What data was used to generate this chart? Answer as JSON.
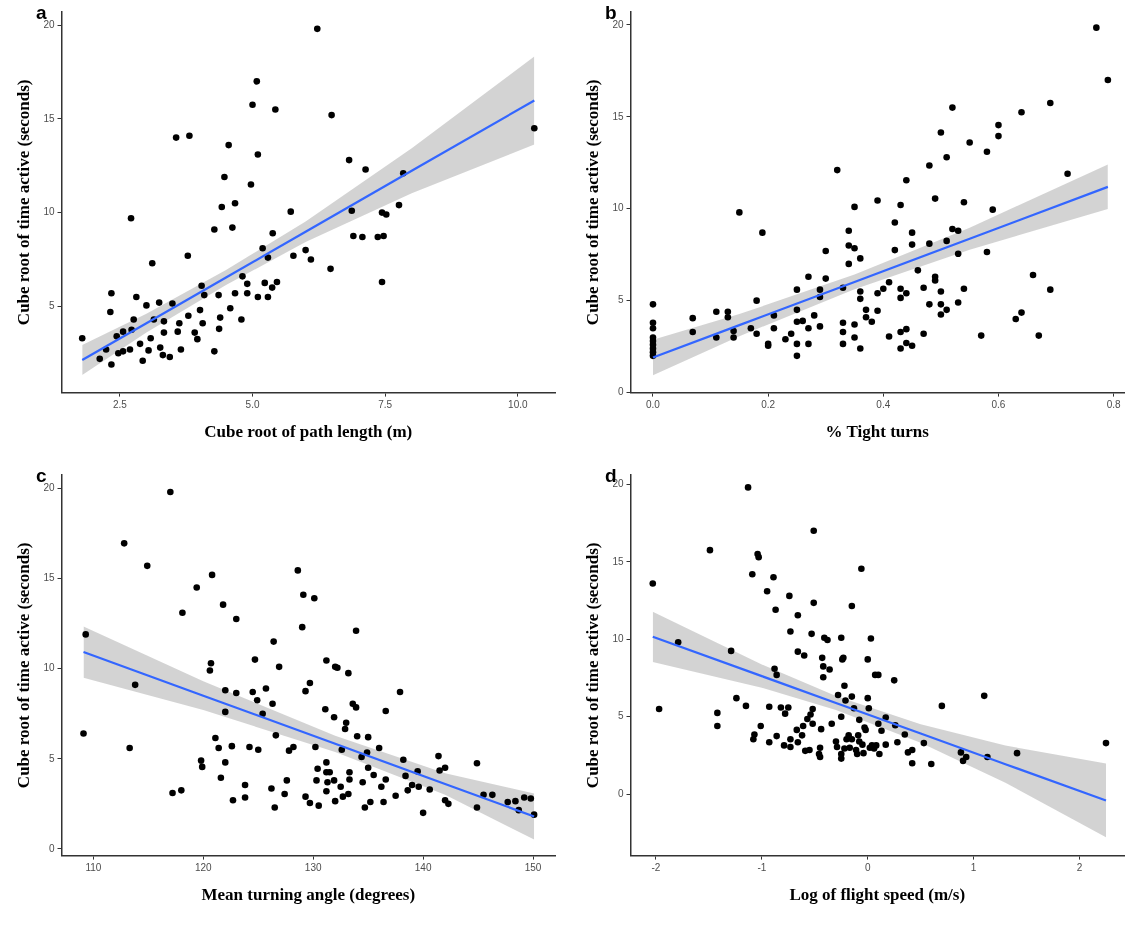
{
  "chart_data": [
    {
      "type": "scatter",
      "title": "a",
      "xlabel": "Cube root of path length (m)",
      "ylabel": "Cube root of time active (seconds)",
      "xlim": [
        1.4,
        10.7
      ],
      "ylim": [
        0.4,
        20.7
      ],
      "xticks": [
        2.5,
        {
          "value": 5,
          "label": "5.0"
        },
        7.5,
        {
          "value": 10,
          "label": "10.0"
        }
      ],
      "yticks": [
        5,
        10,
        15,
        20
      ],
      "series": [
        {
          "marker": "circle",
          "color": "#000000",
          "x": [
            1.79,
            2.34,
            2.34,
            2.32,
            2.71,
            3.11,
            3.56,
            3.81,
            3.78,
            4.04,
            4.28,
            4.28,
            4.42,
            4.47,
            4.55,
            4.67,
            4.62,
            4.97,
            5.0,
            5.08,
            5.1,
            5.43,
            6.22,
            6.49,
            5.72,
            5.38,
            5.19,
            5.29,
            5.77,
            6.0,
            6.1,
            6.47,
            6.82,
            7.13,
            7.84,
            6.87,
            6.9,
            7.07,
            7.36,
            7.47,
            7.44,
            7.52,
            7.76,
            7.44,
            10.31,
            4.81,
            4.9,
            4.9,
            5.1,
            5.29,
            5.46,
            5.37,
            5.23,
            4.67,
            4.36,
            4.58,
            4.79,
            4.37,
            4.39,
            4.09,
            4.01,
            4.06,
            3.96,
            3.79,
            3.49,
            3.24,
            3.0,
            2.81,
            2.76,
            3.65,
            3.44,
            3.31,
            2.93,
            3.04,
            3.26,
            3.59,
            3.33,
            3.08,
            2.88,
            2.69,
            2.56,
            2.47,
            2.12,
            2.24,
            2.44,
            2.56,
            2.72,
            3.14,
            3.33,
            3.62,
            3.91
          ],
          "values": [
            3.3,
            1.9,
            5.7,
            4.7,
            9.7,
            7.3,
            14.0,
            14.1,
            7.7,
            6.1,
            2.6,
            9.1,
            10.3,
            11.9,
            13.6,
            10.5,
            9.2,
            11.5,
            15.75,
            17.0,
            13.1,
            15.5,
            19.8,
            15.2,
            10.05,
            8.9,
            8.1,
            7.6,
            7.7,
            8.0,
            7.5,
            7.0,
            12.8,
            12.3,
            12.1,
            10.1,
            8.75,
            8.7,
            8.7,
            8.75,
            10.0,
            9.9,
            10.4,
            6.3,
            14.5,
            6.6,
            6.2,
            5.7,
            5.5,
            5.5,
            6.3,
            6.0,
            6.25,
            5.7,
            5.6,
            4.9,
            4.3,
            3.8,
            4.4,
            5.6,
            4.8,
            4.1,
            3.25,
            4.5,
            5.15,
            5.2,
            5.05,
            5.5,
            4.3,
            2.7,
            2.3,
            2.4,
            2.1,
            2.65,
            2.8,
            3.65,
            3.6,
            3.3,
            3.0,
            2.7,
            2.6,
            2.5,
            2.2,
            2.7,
            3.4,
            3.65,
            3.75,
            4.3,
            4.2,
            4.1,
            3.6
          ]
        },
        {
          "type": "line",
          "color": "#3366ff",
          "x": [
            1.79,
            3,
            4.5,
            6,
            8,
            10.31
          ],
          "values": [
            2.14,
            4.1,
            6.54,
            8.98,
            12.23,
            15.98
          ],
          "lower": [
            1.34,
            3.6,
            6.14,
            8.43,
            11.03,
            13.63
          ],
          "upper": [
            2.94,
            4.6,
            6.94,
            9.53,
            13.43,
            18.33
          ]
        }
      ]
    },
    {
      "type": "scatter",
      "title": "b",
      "xlabel": "% Tight turns",
      "ylabel": "Cube root of time active (seconds)",
      "xlim": [
        -0.039,
        0.818
      ],
      "ylim": [
        0,
        20.7
      ],
      "xticks": [
        {
          "value": 0,
          "label": "0.0"
        },
        0.2,
        0.4,
        0.6,
        0.8
      ],
      "yticks": [
        0,
        5,
        10,
        15,
        20
      ],
      "series": [
        {
          "marker": "circle",
          "color": "#000000",
          "x": [
            0,
            0,
            0,
            0,
            0,
            0,
            0,
            0,
            0,
            0.069,
            0.069,
            0.11,
            0.11,
            0.13,
            0.13,
            0.14,
            0.14,
            0.15,
            0.17,
            0.18,
            0.18,
            0.19,
            0.2,
            0.2,
            0.21,
            0.21,
            0.23,
            0.24,
            0.25,
            0.25,
            0.25,
            0.25,
            0.25,
            0.26,
            0.27,
            0.27,
            0.27,
            0.28,
            0.29,
            0.29,
            0.29,
            0.3,
            0.3,
            0.32,
            0.33,
            0.33,
            0.33,
            0.33,
            0.34,
            0.34,
            0.34,
            0.35,
            0.35,
            0.35,
            0.35,
            0.36,
            0.36,
            0.36,
            0.36,
            0.37,
            0.37,
            0.38,
            0.39,
            0.39,
            0.39,
            0.4,
            0.41,
            0.41,
            0.42,
            0.42,
            0.43,
            0.43,
            0.43,
            0.43,
            0.43,
            0.44,
            0.44,
            0.44,
            0.44,
            0.45,
            0.45,
            0.45,
            0.46,
            0.47,
            0.47,
            0.48,
            0.48,
            0.48,
            0.49,
            0.49,
            0.49,
            0.5,
            0.5,
            0.5,
            0.5,
            0.51,
            0.51,
            0.51,
            0.52,
            0.52,
            0.53,
            0.53,
            0.53,
            0.54,
            0.54,
            0.55,
            0.57,
            0.58,
            0.58,
            0.59,
            0.6,
            0.6,
            0.63,
            0.64,
            0.64,
            0.66,
            0.67,
            0.69,
            0.69,
            0.72,
            0.77,
            0.79
          ],
          "values": [
            4.8,
            3.8,
            3.5,
            3.0,
            2.8,
            2.6,
            2.4,
            2.2,
            2.0,
            4.05,
            3.3,
            4.4,
            3.0,
            4.4,
            4.1,
            3.35,
            3.0,
            9.8,
            3.5,
            5.0,
            3.2,
            8.7,
            2.65,
            2.55,
            4.2,
            3.5,
            2.9,
            3.2,
            5.6,
            4.5,
            3.85,
            2.65,
            2.0,
            3.9,
            6.3,
            3.5,
            2.65,
            4.2,
            5.6,
            5.2,
            3.6,
            7.7,
            6.2,
            12.1,
            5.7,
            3.8,
            2.65,
            3.3,
            8.8,
            8.0,
            7.0,
            10.1,
            7.85,
            3.7,
            3.0,
            7.3,
            5.5,
            5.1,
            2.4,
            4.5,
            4.1,
            3.85,
            10.45,
            5.4,
            4.45,
            5.65,
            6.0,
            3.05,
            9.25,
            7.75,
            10.2,
            5.65,
            5.15,
            3.3,
            2.4,
            11.55,
            5.4,
            3.45,
            2.7,
            8.7,
            8.05,
            2.55,
            6.65,
            5.7,
            3.2,
            12.35,
            8.1,
            4.8,
            10.55,
            6.3,
            6.1,
            14.15,
            5.5,
            4.8,
            4.25,
            12.8,
            8.25,
            4.5,
            15.5,
            8.9,
            8.8,
            7.55,
            4.9,
            10.35,
            5.65,
            13.6,
            3.1,
            13.1,
            7.65,
            9.95,
            14.55,
            13.95,
            4.0,
            15.25,
            4.35,
            6.4,
            3.1,
            15.75,
            5.6,
            11.9,
            19.85,
            17.0
          ]
        },
        {
          "type": "line",
          "color": "#3366ff",
          "x": [
            0,
            0.15,
            0.35,
            0.55,
            0.79
          ],
          "values": [
            1.91,
            3.67,
            6.02,
            8.37,
            11.19
          ],
          "lower": [
            0.94,
            3.07,
            5.62,
            7.77,
            9.98
          ],
          "upper": [
            2.88,
            4.27,
            6.42,
            8.97,
            12.4
          ]
        }
      ]
    },
    {
      "type": "scatter",
      "title": "c",
      "xlabel": "Mean turning angle (degrees)",
      "ylabel": "Cube root of time active (seconds)",
      "xlim": [
        107.1,
        152
      ],
      "ylim": [
        -0.37,
        20.74
      ],
      "xticks": [
        110,
        120,
        130,
        140,
        150
      ],
      "yticks": [
        0,
        5,
        10,
        15,
        20
      ],
      "series": [
        {
          "marker": "circle",
          "color": "#000000",
          "x": [
            109.1,
            109.3,
            112.8,
            113.3,
            113.8,
            114.9,
            117.0,
            117.2,
            118.0,
            118.1,
            119.4,
            119.8,
            119.9,
            120.6,
            120.7,
            120.8,
            121.1,
            121.4,
            121.6,
            121.8,
            122.0,
            122.0,
            122.0,
            122.6,
            122.7,
            123.0,
            123.0,
            123.8,
            123.8,
            124.2,
            124.5,
            124.7,
            124.9,
            125.0,
            125.4,
            125.7,
            126.2,
            126.3,
            126.4,
            126.5,
            126.6,
            126.9,
            127.4,
            127.6,
            127.8,
            128.2,
            128.6,
            129.0,
            129.1,
            129.3,
            129.3,
            129.7,
            129.7,
            130.1,
            130.2,
            130.3,
            130.4,
            130.5,
            131.1,
            131.2,
            131.2,
            131.2,
            131.2,
            131.3,
            131.5,
            131.9,
            131.9,
            132.0,
            132.2,
            132.0,
            132.5,
            132.6,
            132.7,
            132.9,
            133.0,
            133.2,
            133.2,
            133.3,
            133.3,
            133.6,
            133.9,
            133.9,
            134.0,
            134.4,
            134.5,
            134.7,
            134.9,
            135.0,
            135.0,
            135.2,
            135.5,
            136.0,
            136.2,
            136.4,
            136.6,
            136.6,
            137.5,
            137.9,
            138.2,
            138.4,
            138.6,
            139.0,
            139.5,
            139.6,
            140.0,
            140.6,
            141.4,
            141.5,
            142.0,
            142.0,
            142.3,
            144.9,
            144.9,
            145.5,
            146.3,
            147.7,
            148.4,
            148.7,
            149.2,
            149.8,
            150.1
          ],
          "values": [
            6.4,
            11.9,
            16.95,
            5.6,
            9.1,
            15.7,
            19.8,
            3.1,
            3.25,
            13.1,
            14.5,
            4.9,
            4.55,
            9.9,
            10.3,
            15.2,
            6.15,
            5.6,
            3.95,
            13.55,
            8.8,
            7.6,
            4.8,
            5.7,
            2.7,
            12.75,
            8.65,
            3.55,
            2.85,
            5.65,
            8.7,
            10.5,
            8.25,
            5.5,
            7.5,
            8.9,
            3.35,
            8.05,
            11.5,
            2.3,
            6.3,
            10.1,
            3.05,
            3.8,
            5.45,
            5.65,
            15.45,
            12.3,
            14.1,
            2.9,
            8.75,
            9.2,
            2.55,
            13.9,
            5.65,
            3.8,
            4.45,
            2.4,
            7.75,
            10.45,
            4.8,
            4.25,
            3.2,
            3.7,
            4.25,
            3.8,
            7.3,
            10.1,
            10.05,
            2.65,
            3.45,
            5.5,
            2.9,
            6.65,
            7.0,
            9.75,
            3.05,
            4.25,
            3.85,
            8.05,
            12.1,
            7.85,
            6.25,
            5.1,
            3.7,
            2.3,
            5.35,
            4.5,
            6.2,
            2.6,
            4.1,
            5.6,
            3.45,
            2.6,
            7.65,
            3.85,
            2.95,
            8.7,
            4.95,
            4.05,
            3.25,
            3.55,
            4.3,
            3.45,
            2.0,
            3.3,
            5.15,
            4.35,
            4.5,
            2.7,
            2.5,
            4.75,
            2.3,
            3.0,
            3.0,
            2.6,
            2.65,
            2.15,
            2.85,
            2.8,
            1.9
          ]
        },
        {
          "type": "line",
          "color": "#3366ff",
          "x": [
            109.1,
            120,
            132,
            142,
            150.1
          ],
          "values": [
            10.92,
            8.5,
            5.83,
            3.6,
            1.8
          ],
          "lower": [
            9.5,
            7.7,
            5.38,
            3.0,
            0.52
          ],
          "upper": [
            12.34,
            9.3,
            6.28,
            4.2,
            3.08
          ]
        }
      ]
    },
    {
      "type": "scatter",
      "title": "d",
      "xlabel": "Log of flight speed (m/s)",
      "ylabel": "Cube root of time active (seconds)",
      "xlim": [
        -2.24,
        2.42
      ],
      "ylim": [
        -3.96,
        20.6
      ],
      "xticks": [
        -2,
        -1,
        0,
        1,
        2
      ],
      "yticks": [
        0,
        5,
        10,
        15,
        20
      ],
      "series": [
        {
          "marker": "circle",
          "color": "#000000",
          "x": [
            -2.03,
            -1.97,
            -1.79,
            -1.49,
            -1.42,
            -1.42,
            -1.29,
            -1.24,
            -1.15,
            -1.13,
            -1.09,
            -1.08,
            -1.07,
            -1.04,
            -1.03,
            -1.01,
            -0.95,
            -0.93,
            -0.93,
            -0.89,
            -0.88,
            -0.87,
            -0.86,
            -0.86,
            -0.82,
            -0.79,
            -0.78,
            -0.75,
            -0.74,
            -0.73,
            -0.73,
            -0.73,
            -0.67,
            -0.66,
            -0.66,
            -0.66,
            -0.62,
            -0.61,
            -0.6,
            -0.59,
            -0.57,
            -0.55,
            -0.54,
            -0.53,
            -0.52,
            -0.51,
            -0.51,
            -0.52,
            -0.46,
            -0.45,
            -0.45,
            -0.44,
            -0.43,
            -0.42,
            -0.42,
            -0.41,
            -0.38,
            -0.36,
            -0.34,
            -0.3,
            -0.29,
            -0.28,
            -0.25,
            -0.25,
            -0.24,
            -0.25,
            -0.25,
            -0.23,
            -0.22,
            -0.22,
            -0.21,
            -0.2,
            -0.18,
            -0.17,
            -0.15,
            -0.15,
            -0.15,
            -0.13,
            -0.11,
            -0.1,
            -0.09,
            -0.08,
            -0.08,
            -0.06,
            -0.05,
            -0.04,
            -0.03,
            -0.02,
            0.0,
            0.0,
            0.01,
            0.02,
            0.03,
            0.04,
            0.06,
            0.07,
            0.08,
            0.1,
            0.1,
            0.11,
            0.13,
            0.17,
            0.17,
            0.25,
            0.26,
            0.28,
            0.35,
            0.38,
            0.42,
            0.42,
            0.53,
            0.6,
            0.7,
            0.88,
            0.9,
            0.93,
            1.1,
            1.13,
            1.41,
            2.25
          ],
          "values": [
            13.6,
            5.5,
            9.8,
            15.75,
            4.4,
            5.25,
            9.25,
            6.2,
            5.7,
            19.8,
            14.2,
            3.55,
            3.85,
            15.5,
            15.3,
            4.4,
            13.1,
            3.35,
            5.65,
            14.0,
            8.1,
            11.9,
            7.7,
            3.75,
            5.6,
            3.15,
            5.2,
            5.6,
            12.8,
            10.5,
            3.05,
            3.55,
            4.15,
            11.55,
            9.2,
            3.35,
            3.8,
            4.4,
            8.95,
            2.8,
            4.85,
            2.85,
            5.15,
            10.35,
            5.5,
            17.0,
            12.35,
            4.55,
            2.6,
            2.4,
            3.0,
            4.2,
            8.8,
            7.55,
            8.25,
            10.1,
            9.95,
            8.05,
            4.55,
            3.4,
            3.05,
            6.4,
            10.1,
            5.0,
            8.7,
            2.6,
            2.3,
            8.8,
            7.0,
            2.95,
            6.05,
            3.55,
            3.8,
            3.0,
            6.3,
            3.55,
            12.15,
            5.55,
            2.85,
            2.6,
            3.8,
            3.4,
            4.8,
            14.55,
            3.2,
            2.65,
            4.3,
            4.15,
            6.2,
            8.7,
            5.55,
            3.0,
            10.05,
            3.15,
            2.95,
            7.7,
            3.15,
            7.7,
            4.55,
            2.6,
            4.1,
            4.95,
            3.2,
            7.35,
            4.45,
            3.35,
            3.85,
            2.7,
            2.85,
            2.0,
            3.3,
            1.95,
            5.7,
            2.7,
            2.15,
            2.4,
            6.35,
            2.4,
            2.65,
            3.3
          ]
        },
        {
          "type": "line",
          "color": "#3366ff",
          "x": [
            -2.03,
            -1,
            -0.3,
            0.5,
            1.3,
            2.25
          ],
          "values": [
            10.16,
            7.62,
            5.89,
            3.92,
            1.94,
            -0.4
          ],
          "lower": [
            8.54,
            6.87,
            5.44,
            3.32,
            0.74,
            -2.78
          ],
          "upper": [
            11.78,
            8.37,
            6.34,
            4.52,
            3.14,
            1.98
          ]
        }
      ]
    }
  ]
}
